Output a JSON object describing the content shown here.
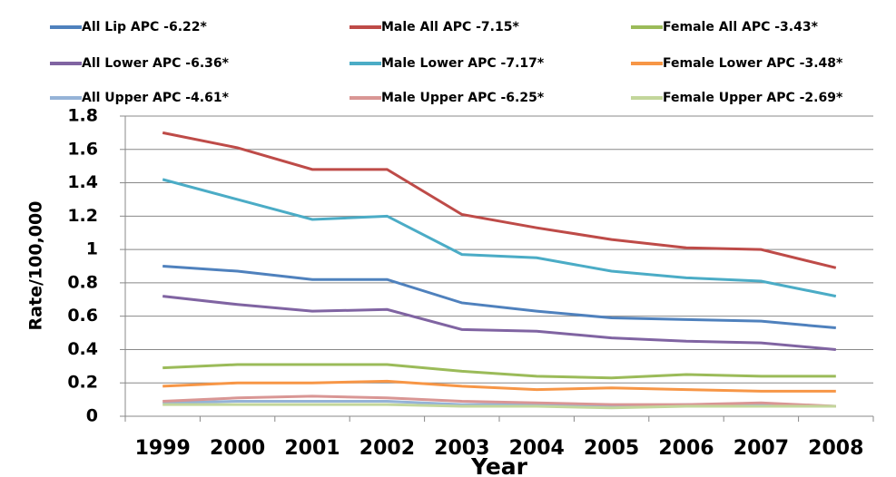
{
  "chart_data": {
    "type": "line",
    "x_label": "Year",
    "y_label": "Rate/100,000",
    "categories": [
      "1999",
      "2000",
      "2001",
      "2002",
      "2003",
      "2004",
      "2005",
      "2006",
      "2007",
      "2008"
    ],
    "series": [
      {
        "name": "All Lip APC -6.22*",
        "color": "#4f81bd",
        "values": [
          0.9,
          0.87,
          0.82,
          0.82,
          0.68,
          0.63,
          0.59,
          0.58,
          0.57,
          0.53
        ]
      },
      {
        "name": "Male All APC -7.15*",
        "color": "#be4b48",
        "values": [
          1.7,
          1.61,
          1.48,
          1.48,
          1.21,
          1.13,
          1.06,
          1.01,
          1.0,
          0.89
        ]
      },
      {
        "name": "Female All APC -3.43*",
        "color": "#9bbb59",
        "values": [
          0.29,
          0.31,
          0.31,
          0.31,
          0.27,
          0.24,
          0.23,
          0.25,
          0.24,
          0.24
        ]
      },
      {
        "name": "All Lower APC -6.36*",
        "color": "#8064a2",
        "values": [
          0.72,
          0.67,
          0.63,
          0.64,
          0.52,
          0.51,
          0.47,
          0.45,
          0.44,
          0.4
        ]
      },
      {
        "name": "Male Lower APC -7.17*",
        "color": "#4bacc6",
        "values": [
          1.42,
          1.3,
          1.18,
          1.2,
          0.97,
          0.95,
          0.87,
          0.83,
          0.81,
          0.72
        ]
      },
      {
        "name": "Female Lower APC -3.48*",
        "color": "#f79646",
        "values": [
          0.18,
          0.2,
          0.2,
          0.21,
          0.18,
          0.16,
          0.17,
          0.16,
          0.15,
          0.15
        ]
      },
      {
        "name": "All Upper APC -4.61*",
        "color": "#95b3d7",
        "values": [
          0.08,
          0.09,
          0.09,
          0.09,
          0.07,
          0.07,
          0.06,
          0.07,
          0.07,
          0.06
        ]
      },
      {
        "name": "Male Upper APC -6.25*",
        "color": "#d99694",
        "values": [
          0.09,
          0.11,
          0.12,
          0.11,
          0.09,
          0.08,
          0.07,
          0.07,
          0.08,
          0.06
        ]
      },
      {
        "name": "Female Upper APC -2.69*",
        "color": "#c3d69b",
        "values": [
          0.07,
          0.07,
          0.07,
          0.07,
          0.06,
          0.06,
          0.05,
          0.06,
          0.06,
          0.06
        ]
      }
    ],
    "ylim": [
      0,
      1.8
    ],
    "yticks": [
      0,
      0.2,
      0.4,
      0.6,
      0.8,
      1,
      1.2,
      1.4,
      1.6,
      1.8
    ],
    "grid": true
  }
}
